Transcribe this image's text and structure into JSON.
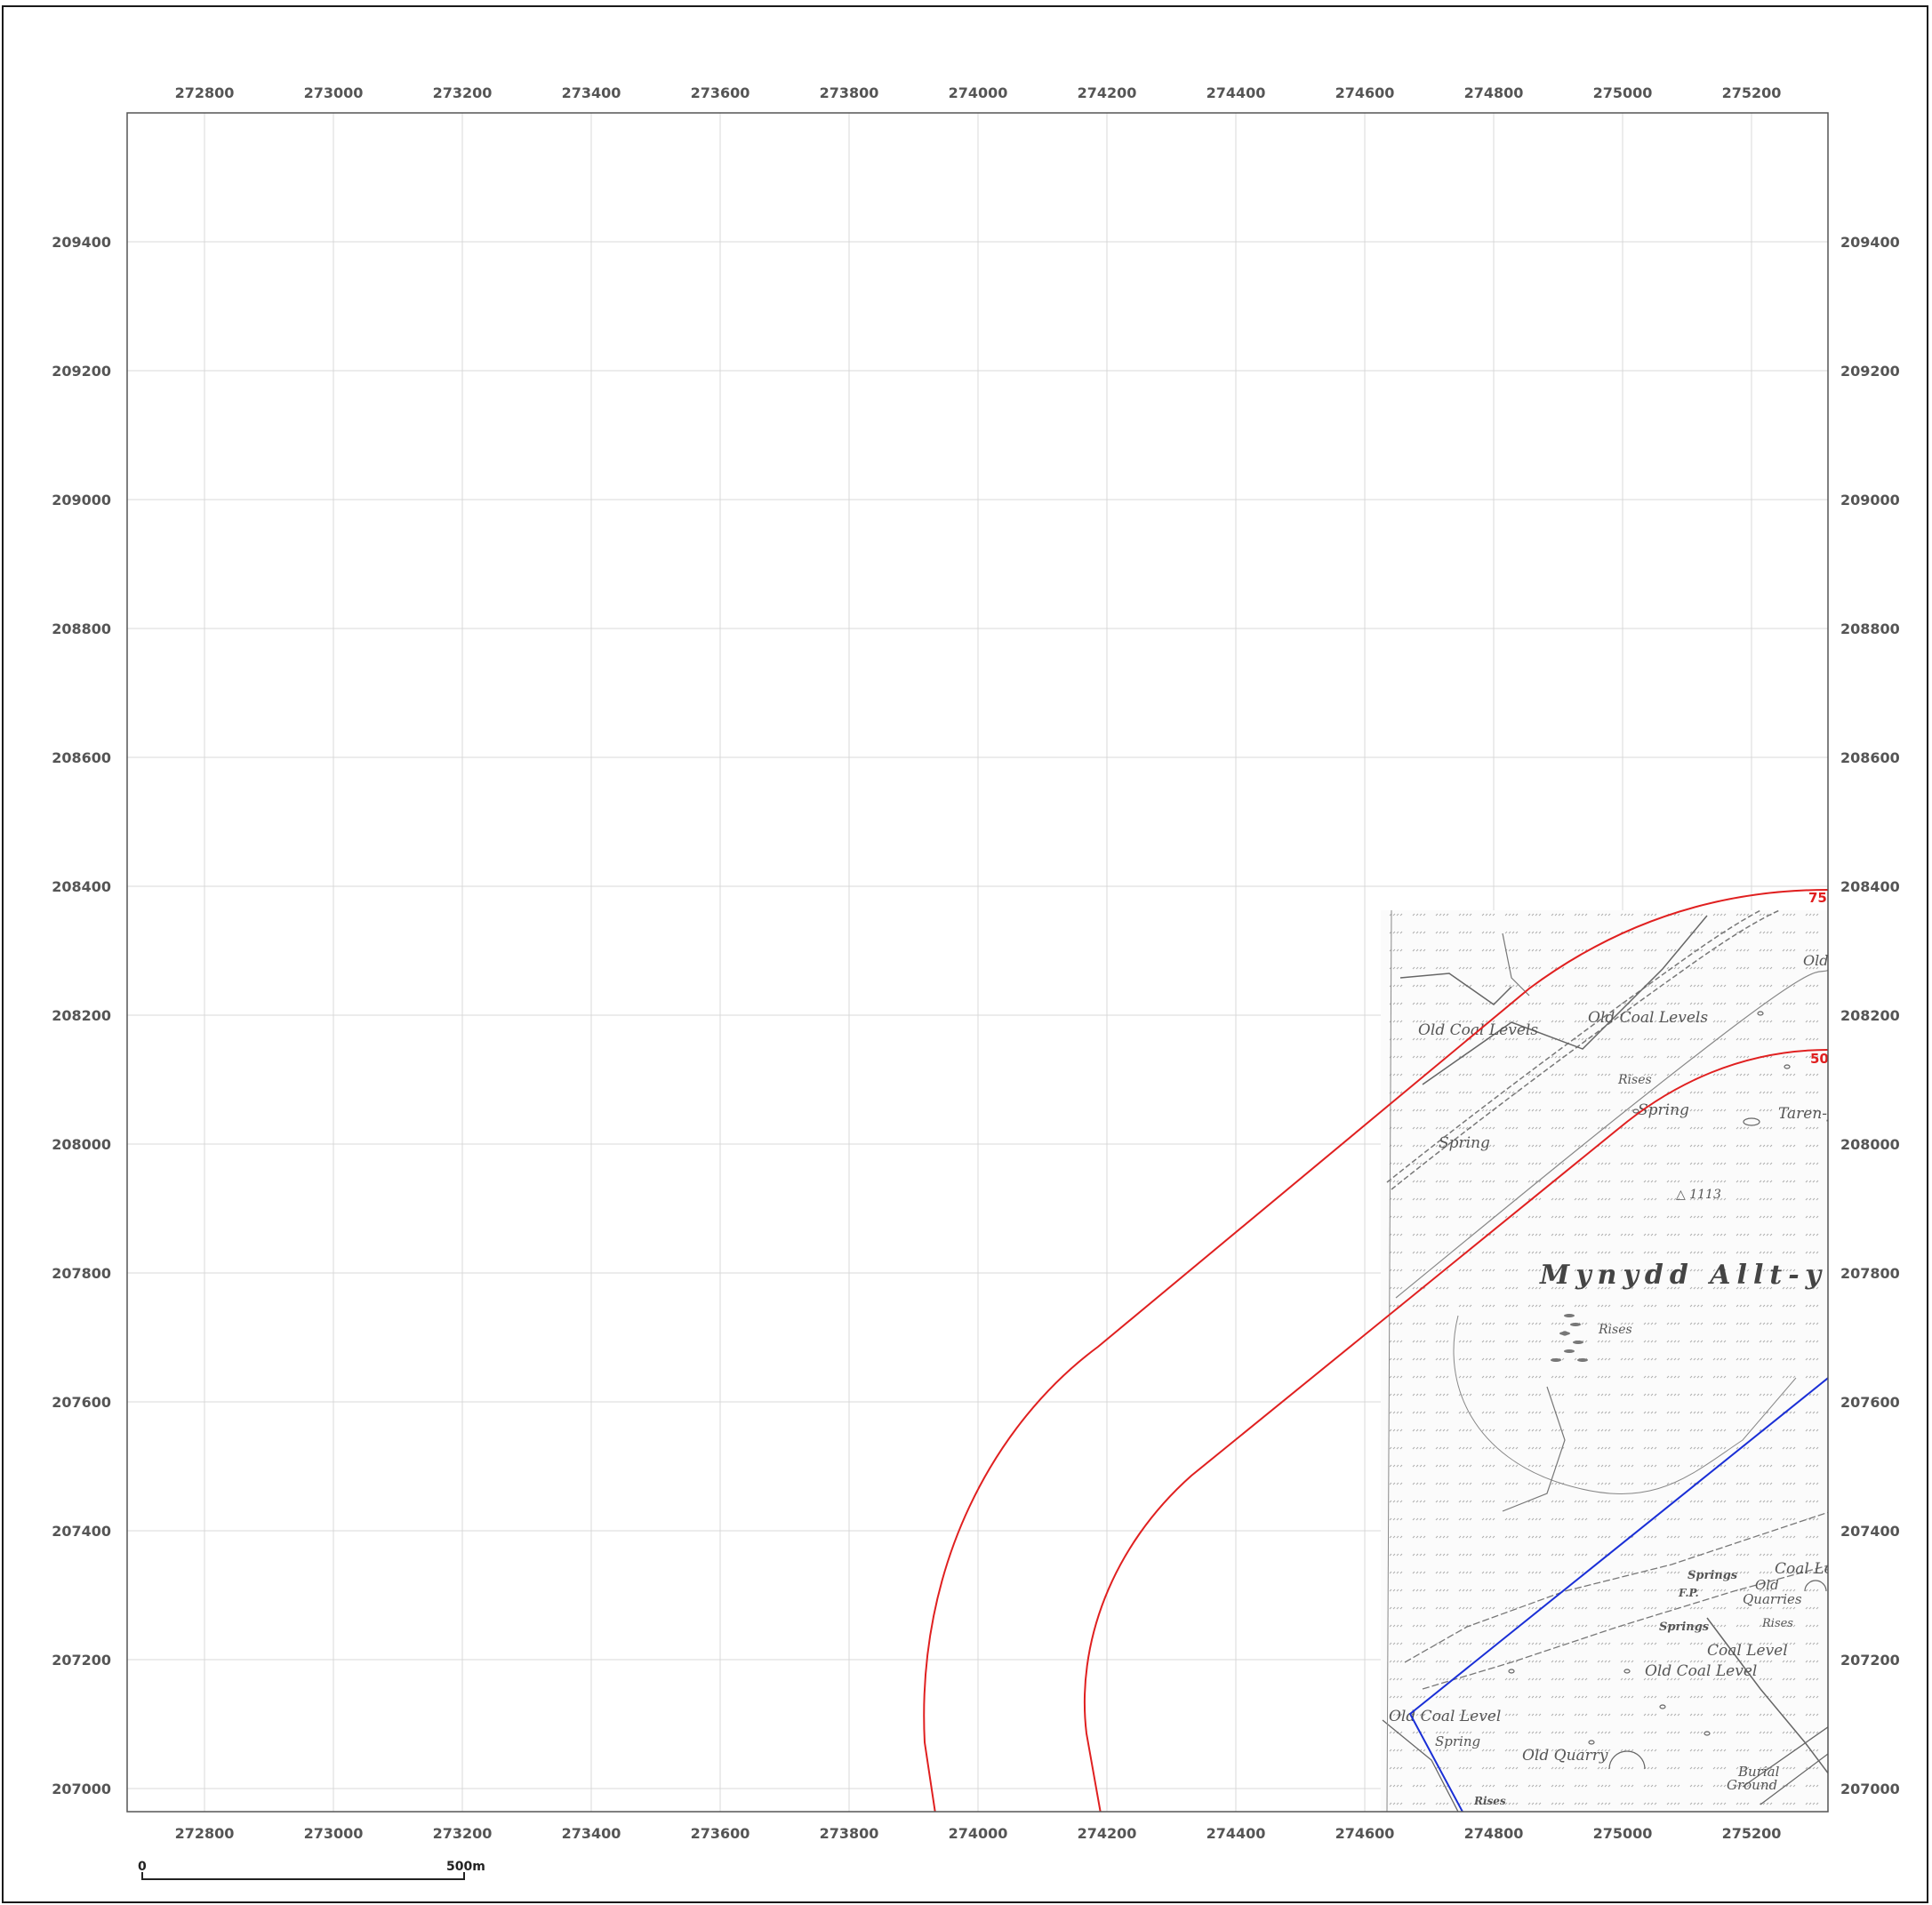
{
  "map": {
    "grid_color": "#d9d9d9",
    "frame_color": "#555555",
    "x_ticks": [
      "272800",
      "273000",
      "273200",
      "273400",
      "273600",
      "273800",
      "274000",
      "274200",
      "274400",
      "274600",
      "274800",
      "275000",
      "275200"
    ],
    "y_ticks": [
      "209400",
      "209200",
      "209000",
      "208800",
      "208600",
      "208400",
      "208200",
      "208000",
      "207800",
      "207600",
      "207400",
      "207200",
      "207000"
    ]
  },
  "rings": [
    {
      "label": "75",
      "color": "#e02020"
    },
    {
      "label": "50",
      "color": "#e02020"
    }
  ],
  "boundary_line": {
    "color": "#1a2fd6"
  },
  "map_labels": {
    "old_coal_levels_1": "Old Coal Levels",
    "old_coal_levels_2": "Old Coal Levels",
    "old_top": "Old",
    "rises_1": "Rises",
    "spring_1": "Spring",
    "taren": "Taren-y",
    "spring_2": "Spring",
    "trig": "△ 1113",
    "mynydd": "Mynydd Allt-y-gr",
    "rises_2": "Rises",
    "springs_1": "Springs",
    "coal_le": "Coal Le",
    "old_quarries_a": "Old",
    "old_quarries_b": "Quarries",
    "rises_3": "Rises",
    "springs_2": "Springs",
    "coal_level": "Coal Level",
    "old_coal_level_1": "Old Coal Level",
    "fp": "F.P.",
    "old_coal_level_2": "Old Coal Level",
    "spring_3": "Spring",
    "old_quarry": "Old Quarry",
    "burial_a": "Burial",
    "burial_b": "Ground",
    "rises_4": "Rises"
  },
  "scale_bar": {
    "start_label": "0",
    "end_label": "500m"
  }
}
